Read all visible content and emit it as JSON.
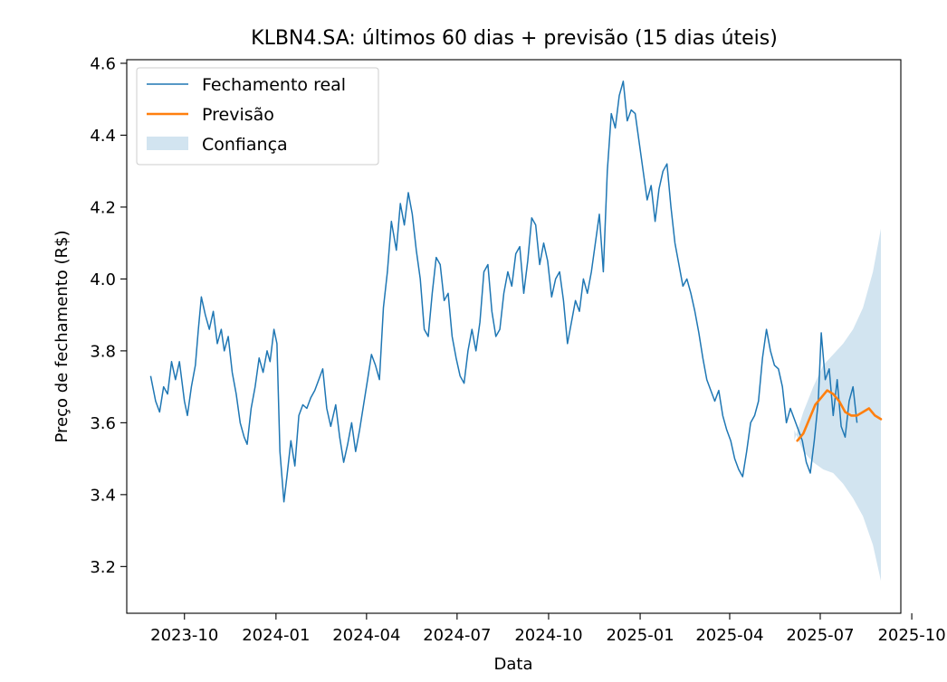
{
  "chart_data": {
    "type": "line",
    "title": "KLBN4.SA: últimos 60 dias + previsão (15 dias úteis)",
    "xlabel": "Data",
    "ylabel": "Preço de fechamento (R$)",
    "xlim": [
      "2023-08-04",
      "2025-09-20"
    ],
    "ylim": [
      3.07,
      4.61
    ],
    "x_ticks": [
      "2023-10",
      "2024-01",
      "2024-04",
      "2024-07",
      "2024-10",
      "2025-01",
      "2025-04",
      "2025-07",
      "2025-10"
    ],
    "y_ticks": [
      3.2,
      3.4,
      3.6,
      3.8,
      4.0,
      4.2,
      4.4,
      4.6
    ],
    "y_tick_labels": [
      "3.2",
      "3.4",
      "3.6",
      "3.8",
      "4.0",
      "4.2",
      "4.4",
      "4.6"
    ],
    "legend": {
      "position": "top-left",
      "entries": [
        "Fechamento real",
        "Previsão",
        "Confiança"
      ]
    },
    "colors": {
      "actual": "#1f77b4",
      "forecast": "#ff7f0e",
      "band": "#1f77b4"
    },
    "series": [
      {
        "name": "Fechamento real",
        "points": [
          [
            "2023-08-28",
            3.73
          ],
          [
            "2023-09-02",
            3.66
          ],
          [
            "2023-09-06",
            3.63
          ],
          [
            "2023-09-10",
            3.7
          ],
          [
            "2023-09-14",
            3.68
          ],
          [
            "2023-09-18",
            3.77
          ],
          [
            "2023-09-22",
            3.72
          ],
          [
            "2023-09-26",
            3.77
          ],
          [
            "2023-10-01",
            3.66
          ],
          [
            "2023-10-04",
            3.62
          ],
          [
            "2023-10-08",
            3.7
          ],
          [
            "2023-10-12",
            3.76
          ],
          [
            "2023-10-15",
            3.86
          ],
          [
            "2023-10-18",
            3.95
          ],
          [
            "2023-10-22",
            3.9
          ],
          [
            "2023-10-26",
            3.86
          ],
          [
            "2023-10-30",
            3.91
          ],
          [
            "2023-11-03",
            3.82
          ],
          [
            "2023-11-07",
            3.86
          ],
          [
            "2023-11-10",
            3.8
          ],
          [
            "2023-11-14",
            3.84
          ],
          [
            "2023-11-18",
            3.74
          ],
          [
            "2023-11-22",
            3.68
          ],
          [
            "2023-11-26",
            3.6
          ],
          [
            "2023-11-30",
            3.56
          ],
          [
            "2023-12-03",
            3.54
          ],
          [
            "2023-12-07",
            3.64
          ],
          [
            "2023-12-11",
            3.7
          ],
          [
            "2023-12-15",
            3.78
          ],
          [
            "2023-12-19",
            3.74
          ],
          [
            "2023-12-23",
            3.8
          ],
          [
            "2023-12-26",
            3.77
          ],
          [
            "2023-12-30",
            3.86
          ],
          [
            "2024-01-02",
            3.82
          ],
          [
            "2024-01-05",
            3.52
          ],
          [
            "2024-01-09",
            3.38
          ],
          [
            "2024-01-12",
            3.45
          ],
          [
            "2024-01-16",
            3.55
          ],
          [
            "2024-01-20",
            3.48
          ],
          [
            "2024-01-24",
            3.62
          ],
          [
            "2024-01-28",
            3.65
          ],
          [
            "2024-02-01",
            3.64
          ],
          [
            "2024-02-05",
            3.67
          ],
          [
            "2024-02-09",
            3.69
          ],
          [
            "2024-02-13",
            3.72
          ],
          [
            "2024-02-17",
            3.75
          ],
          [
            "2024-02-21",
            3.64
          ],
          [
            "2024-02-25",
            3.59
          ],
          [
            "2024-03-01",
            3.65
          ],
          [
            "2024-03-05",
            3.56
          ],
          [
            "2024-03-09",
            3.49
          ],
          [
            "2024-03-13",
            3.54
          ],
          [
            "2024-03-17",
            3.6
          ],
          [
            "2024-03-21",
            3.52
          ],
          [
            "2024-03-25",
            3.58
          ],
          [
            "2024-03-29",
            3.65
          ],
          [
            "2024-04-02",
            3.72
          ],
          [
            "2024-04-06",
            3.79
          ],
          [
            "2024-04-10",
            3.76
          ],
          [
            "2024-04-14",
            3.72
          ],
          [
            "2024-04-18",
            3.92
          ],
          [
            "2024-04-22",
            4.02
          ],
          [
            "2024-04-26",
            4.16
          ],
          [
            "2024-05-01",
            4.08
          ],
          [
            "2024-05-05",
            4.21
          ],
          [
            "2024-05-09",
            4.15
          ],
          [
            "2024-05-13",
            4.24
          ],
          [
            "2024-05-17",
            4.18
          ],
          [
            "2024-05-21",
            4.08
          ],
          [
            "2024-05-25",
            4.0
          ],
          [
            "2024-05-29",
            3.86
          ],
          [
            "2024-06-02",
            3.84
          ],
          [
            "2024-06-06",
            3.96
          ],
          [
            "2024-06-10",
            4.06
          ],
          [
            "2024-06-14",
            4.04
          ],
          [
            "2024-06-18",
            3.94
          ],
          [
            "2024-06-22",
            3.96
          ],
          [
            "2024-06-26",
            3.84
          ],
          [
            "2024-06-30",
            3.78
          ],
          [
            "2024-07-04",
            3.73
          ],
          [
            "2024-07-08",
            3.71
          ],
          [
            "2024-07-12",
            3.8
          ],
          [
            "2024-07-16",
            3.86
          ],
          [
            "2024-07-20",
            3.8
          ],
          [
            "2024-07-24",
            3.88
          ],
          [
            "2024-07-28",
            4.02
          ],
          [
            "2024-08-01",
            4.04
          ],
          [
            "2024-08-05",
            3.91
          ],
          [
            "2024-08-09",
            3.84
          ],
          [
            "2024-08-13",
            3.86
          ],
          [
            "2024-08-17",
            3.96
          ],
          [
            "2024-08-21",
            4.02
          ],
          [
            "2024-08-25",
            3.98
          ],
          [
            "2024-08-29",
            4.07
          ],
          [
            "2024-09-02",
            4.09
          ],
          [
            "2024-09-06",
            3.96
          ],
          [
            "2024-09-10",
            4.05
          ],
          [
            "2024-09-14",
            4.17
          ],
          [
            "2024-09-18",
            4.15
          ],
          [
            "2024-09-22",
            4.04
          ],
          [
            "2024-09-26",
            4.1
          ],
          [
            "2024-09-30",
            4.05
          ],
          [
            "2024-10-04",
            3.95
          ],
          [
            "2024-10-08",
            4.0
          ],
          [
            "2024-10-12",
            4.02
          ],
          [
            "2024-10-16",
            3.94
          ],
          [
            "2024-10-20",
            3.82
          ],
          [
            "2024-10-24",
            3.88
          ],
          [
            "2024-10-28",
            3.94
          ],
          [
            "2024-11-01",
            3.91
          ],
          [
            "2024-11-05",
            4.0
          ],
          [
            "2024-11-09",
            3.96
          ],
          [
            "2024-11-13",
            4.02
          ],
          [
            "2024-11-17",
            4.1
          ],
          [
            "2024-11-21",
            4.18
          ],
          [
            "2024-11-25",
            4.02
          ],
          [
            "2024-11-29",
            4.3
          ],
          [
            "2024-12-03",
            4.46
          ],
          [
            "2024-12-07",
            4.42
          ],
          [
            "2024-12-11",
            4.51
          ],
          [
            "2024-12-15",
            4.55
          ],
          [
            "2024-12-19",
            4.44
          ],
          [
            "2024-12-23",
            4.47
          ],
          [
            "2024-12-27",
            4.46
          ],
          [
            "2024-12-31",
            4.38
          ],
          [
            "2025-01-04",
            4.3
          ],
          [
            "2025-01-08",
            4.22
          ],
          [
            "2025-01-12",
            4.26
          ],
          [
            "2025-01-16",
            4.16
          ],
          [
            "2025-01-20",
            4.25
          ],
          [
            "2025-01-24",
            4.3
          ],
          [
            "2025-01-28",
            4.32
          ],
          [
            "2025-02-01",
            4.2
          ],
          [
            "2025-02-05",
            4.1
          ],
          [
            "2025-02-09",
            4.04
          ],
          [
            "2025-02-13",
            3.98
          ],
          [
            "2025-02-17",
            4.0
          ],
          [
            "2025-02-21",
            3.96
          ],
          [
            "2025-02-25",
            3.91
          ],
          [
            "2025-03-01",
            3.85
          ],
          [
            "2025-03-05",
            3.78
          ],
          [
            "2025-03-09",
            3.72
          ],
          [
            "2025-03-13",
            3.69
          ],
          [
            "2025-03-17",
            3.66
          ],
          [
            "2025-03-21",
            3.69
          ],
          [
            "2025-03-25",
            3.62
          ],
          [
            "2025-03-29",
            3.58
          ],
          [
            "2025-04-02",
            3.55
          ],
          [
            "2025-04-06",
            3.5
          ],
          [
            "2025-04-10",
            3.47
          ],
          [
            "2025-04-14",
            3.45
          ],
          [
            "2025-04-18",
            3.52
          ],
          [
            "2025-04-22",
            3.6
          ],
          [
            "2025-04-26",
            3.62
          ],
          [
            "2025-04-30",
            3.66
          ],
          [
            "2025-05-04",
            3.78
          ],
          [
            "2025-05-08",
            3.86
          ],
          [
            "2025-05-12",
            3.8
          ],
          [
            "2025-05-16",
            3.76
          ],
          [
            "2025-05-20",
            3.75
          ],
          [
            "2025-05-24",
            3.7
          ],
          [
            "2025-05-28",
            3.6
          ],
          [
            "2025-06-01",
            3.64
          ],
          [
            "2025-06-05",
            3.61
          ],
          [
            "2025-06-09",
            3.58
          ],
          [
            "2025-06-13",
            3.55
          ],
          [
            "2025-06-17",
            3.49
          ],
          [
            "2025-06-21",
            3.46
          ],
          [
            "2025-06-25",
            3.55
          ],
          [
            "2025-06-29",
            3.66
          ],
          [
            "2025-07-02",
            3.85
          ],
          [
            "2025-07-06",
            3.72
          ],
          [
            "2025-07-10",
            3.75
          ],
          [
            "2025-07-14",
            3.62
          ],
          [
            "2025-07-18",
            3.72
          ],
          [
            "2025-07-22",
            3.59
          ],
          [
            "2025-07-26",
            3.56
          ],
          [
            "2025-07-30",
            3.66
          ],
          [
            "2025-08-03",
            3.7
          ],
          [
            "2025-08-07",
            3.6
          ]
        ]
      },
      {
        "name": "Previsão",
        "points": [
          [
            "2025-06-08",
            3.55
          ],
          [
            "2025-06-14",
            3.57
          ],
          [
            "2025-06-20",
            3.61
          ],
          [
            "2025-06-26",
            3.65
          ],
          [
            "2025-07-02",
            3.67
          ],
          [
            "2025-07-08",
            3.69
          ],
          [
            "2025-07-14",
            3.68
          ],
          [
            "2025-07-20",
            3.66
          ],
          [
            "2025-07-26",
            3.63
          ],
          [
            "2025-08-01",
            3.62
          ],
          [
            "2025-08-07",
            3.62
          ],
          [
            "2025-08-13",
            3.63
          ],
          [
            "2025-08-19",
            3.64
          ],
          [
            "2025-08-25",
            3.62
          ],
          [
            "2025-08-31",
            3.61
          ]
        ]
      }
    ],
    "confidence_band": {
      "name": "Confiança",
      "points": [
        [
          "2025-06-05",
          3.58,
          3.55
        ],
        [
          "2025-06-14",
          3.52,
          3.63
        ],
        [
          "2025-06-24",
          3.49,
          3.7
        ],
        [
          "2025-07-04",
          3.47,
          3.76
        ],
        [
          "2025-07-14",
          3.46,
          3.79
        ],
        [
          "2025-07-24",
          3.43,
          3.82
        ],
        [
          "2025-08-03",
          3.39,
          3.86
        ],
        [
          "2025-08-13",
          3.34,
          3.92
        ],
        [
          "2025-08-23",
          3.26,
          4.02
        ],
        [
          "2025-08-31",
          3.16,
          4.14
        ]
      ]
    }
  }
}
